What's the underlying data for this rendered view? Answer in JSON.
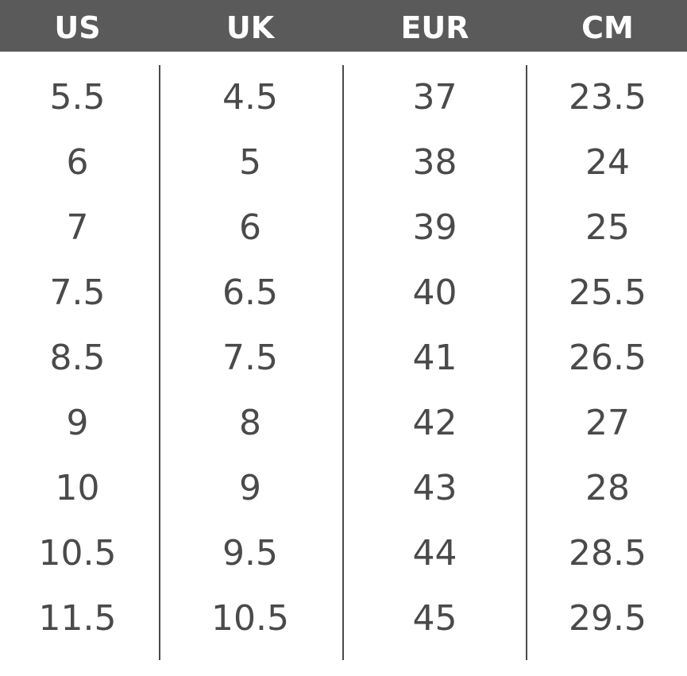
{
  "table": {
    "headers": [
      "US",
      "UK",
      "EUR",
      "CM"
    ],
    "rows": [
      [
        "5.5",
        "4.5",
        "37",
        "23.5"
      ],
      [
        "6",
        "5",
        "38",
        "24"
      ],
      [
        "7",
        "6",
        "39",
        "25"
      ],
      [
        "7.5",
        "6.5",
        "40",
        "25.5"
      ],
      [
        "8.5",
        "7.5",
        "41",
        "26.5"
      ],
      [
        "9",
        "8",
        "42",
        "27"
      ],
      [
        "10",
        "9",
        "43",
        "28"
      ],
      [
        "10.5",
        "9.5",
        "44",
        "28.5"
      ],
      [
        "11.5",
        "10.5",
        "45",
        "29.5"
      ]
    ]
  },
  "colors": {
    "header_bg": "#5a5a5a",
    "header_text": "#ffffff",
    "cell_text": "#4a4a4a",
    "divider": "#4a4a4a"
  }
}
